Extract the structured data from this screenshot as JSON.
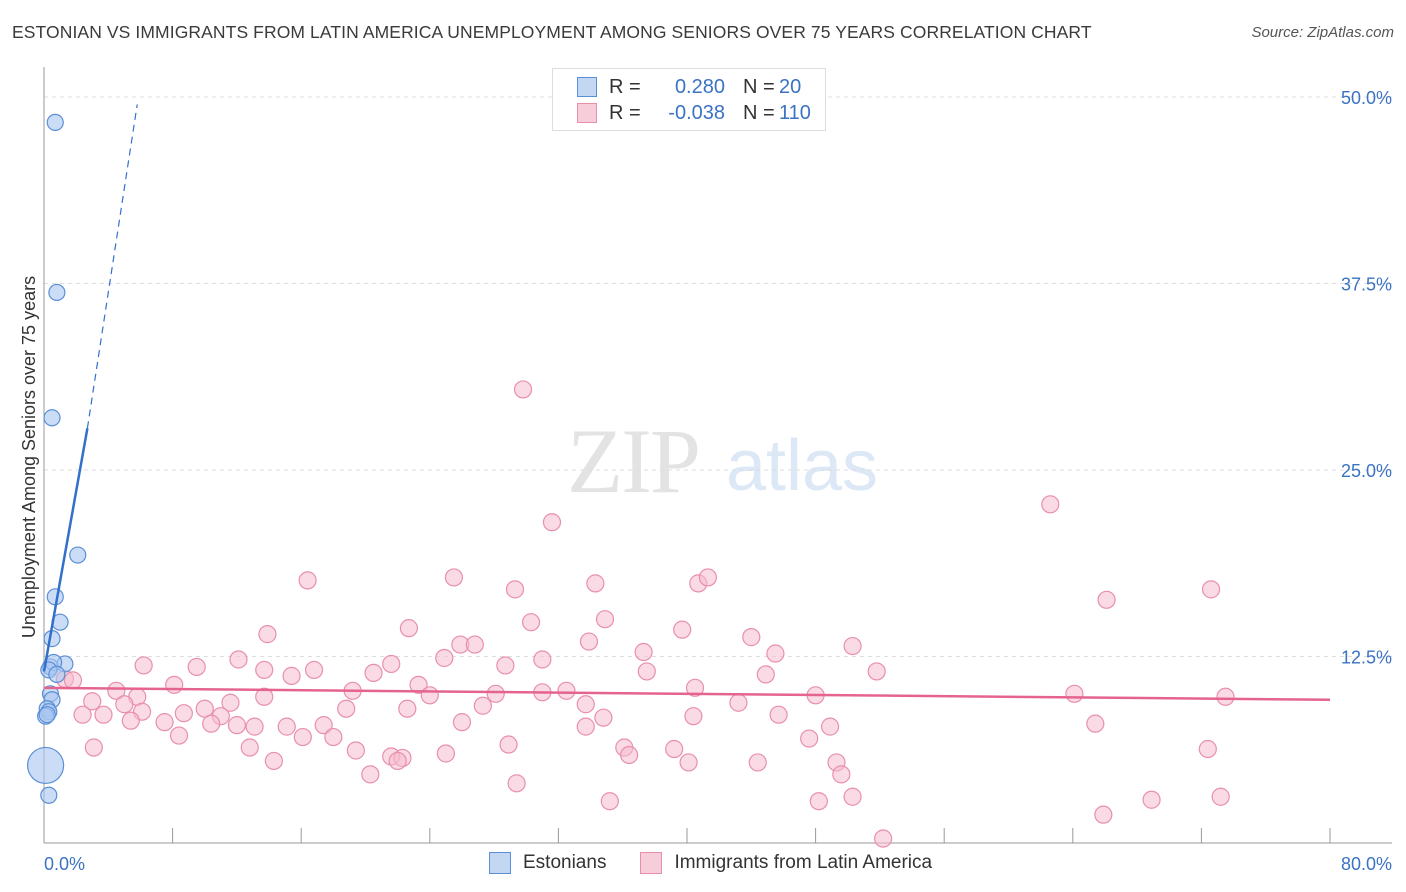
{
  "title": "ESTONIAN VS IMMIGRANTS FROM LATIN AMERICA UNEMPLOYMENT AMONG SENIORS OVER 75 YEARS CORRELATION CHART",
  "source": "Source: ZipAtlas.com",
  "watermark": {
    "zip": "ZIP",
    "atlas": "atlas"
  },
  "legend_top": [
    {
      "r_label": "R =",
      "r_value": "0.280",
      "n_label": "N =",
      "n_value": "20"
    },
    {
      "r_label": "R =",
      "r_value": "-0.038",
      "n_label": "N =",
      "n_value": "110"
    }
  ],
  "legend_bottom": [
    "Estonians",
    "Immigrants from Latin America"
  ],
  "colors": {
    "blue_fill": "#a8c6f0",
    "blue_stroke": "#5a8fd6",
    "blue_line": "#3370cc",
    "pink_fill": "#f6bccd",
    "pink_stroke": "#e890ab",
    "pink_line": "#e5648f",
    "axis_text": "#3b73c4",
    "grid": "#dddddd"
  },
  "chart_data": {
    "type": "scatter",
    "title": "ESTONIAN VS IMMIGRANTS FROM LATIN AMERICA UNEMPLOYMENT AMONG SENIORS OVER 75 YEARS CORRELATION CHART",
    "xlabel": "",
    "ylabel": "Unemployment Among Seniors over 75 years",
    "xlim": [
      0,
      80
    ],
    "ylim": [
      0,
      50
    ],
    "x_tick_labels": [
      "0.0%",
      "80.0%"
    ],
    "y_ticks": [
      12.5,
      25.0,
      37.5,
      50.0
    ],
    "y_tick_labels": [
      "12.5%",
      "25.0%",
      "37.5%",
      "50.0%"
    ],
    "series": [
      {
        "name": "Estonians",
        "r": 0.28,
        "n": 20,
        "points": [
          [
            0.7,
            48.3
          ],
          [
            0.8,
            36.9
          ],
          [
            0.5,
            28.5
          ],
          [
            2.1,
            19.3
          ],
          [
            0.7,
            16.5
          ],
          [
            1.0,
            14.8
          ],
          [
            0.5,
            13.7
          ],
          [
            0.4,
            11.8
          ],
          [
            1.3,
            12.0
          ],
          [
            0.6,
            12.1
          ],
          [
            0.3,
            11.6
          ],
          [
            0.8,
            11.3
          ],
          [
            0.4,
            10.0
          ],
          [
            0.5,
            9.6
          ],
          [
            0.2,
            9.0
          ],
          [
            0.3,
            8.8
          ],
          [
            0.1,
            8.5
          ],
          [
            0.2,
            8.6
          ],
          [
            0.3,
            3.2
          ],
          [
            0.1,
            5.2,
            "large"
          ]
        ],
        "trend": {
          "x0": 0.0,
          "y0": 11.5,
          "x1": 2.7,
          "y1": 27.8,
          "dash_x1": 5.8,
          "dash_y1": 49.5
        }
      },
      {
        "name": "Immigrants from Latin America",
        "r": -0.038,
        "n": 110,
        "points": [
          [
            29.8,
            30.4
          ],
          [
            31.6,
            21.5
          ],
          [
            62.6,
            22.7
          ],
          [
            16.4,
            17.6
          ],
          [
            25.5,
            17.8
          ],
          [
            29.3,
            17.0
          ],
          [
            34.3,
            17.4
          ],
          [
            40.7,
            17.4
          ],
          [
            41.3,
            17.8
          ],
          [
            72.6,
            17.0
          ],
          [
            66.1,
            16.3
          ],
          [
            30.3,
            14.8
          ],
          [
            34.9,
            15.0
          ],
          [
            22.7,
            14.4
          ],
          [
            39.7,
            14.3
          ],
          [
            13.9,
            14.0
          ],
          [
            25.9,
            13.3
          ],
          [
            26.8,
            13.3
          ],
          [
            33.9,
            13.5
          ],
          [
            44.0,
            13.8
          ],
          [
            50.3,
            13.2
          ],
          [
            37.3,
            12.8
          ],
          [
            31.0,
            12.3
          ],
          [
            45.5,
            12.7
          ],
          [
            12.1,
            12.3
          ],
          [
            24.9,
            12.4
          ],
          [
            6.2,
            11.9
          ],
          [
            9.5,
            11.8
          ],
          [
            13.7,
            11.6
          ],
          [
            16.8,
            11.6
          ],
          [
            20.5,
            11.4
          ],
          [
            21.6,
            12.0
          ],
          [
            28.7,
            11.9
          ],
          [
            37.5,
            11.5
          ],
          [
            44.9,
            11.3
          ],
          [
            51.8,
            11.5
          ],
          [
            15.4,
            11.2
          ],
          [
            1.3,
            11.0
          ],
          [
            1.8,
            10.9
          ],
          [
            8.1,
            10.6
          ],
          [
            4.5,
            10.2
          ],
          [
            23.3,
            10.6
          ],
          [
            40.5,
            10.4
          ],
          [
            19.2,
            10.2
          ],
          [
            31.0,
            10.1
          ],
          [
            32.5,
            10.2
          ],
          [
            28.1,
            10.0
          ],
          [
            5.8,
            9.8
          ],
          [
            13.7,
            9.8
          ],
          [
            24.0,
            9.9
          ],
          [
            48.0,
            9.9
          ],
          [
            64.1,
            10.0
          ],
          [
            73.5,
            9.8
          ],
          [
            3.0,
            9.5
          ],
          [
            5.0,
            9.3
          ],
          [
            11.6,
            9.4
          ],
          [
            18.8,
            9.0
          ],
          [
            22.6,
            9.0
          ],
          [
            33.7,
            9.3
          ],
          [
            43.2,
            9.4
          ],
          [
            27.3,
            9.2
          ],
          [
            6.1,
            8.8
          ],
          [
            10.0,
            9.0
          ],
          [
            2.4,
            8.6
          ],
          [
            3.7,
            8.6
          ],
          [
            8.7,
            8.7
          ],
          [
            11.0,
            8.5
          ],
          [
            40.4,
            8.5
          ],
          [
            45.7,
            8.6
          ],
          [
            34.8,
            8.4
          ],
          [
            5.4,
            8.2
          ],
          [
            7.5,
            8.1
          ],
          [
            10.4,
            8.0
          ],
          [
            12.0,
            7.9
          ],
          [
            13.1,
            7.8
          ],
          [
            15.1,
            7.8
          ],
          [
            17.4,
            7.9
          ],
          [
            26.0,
            8.1
          ],
          [
            33.7,
            7.8
          ],
          [
            48.9,
            7.8
          ],
          [
            65.4,
            8.0
          ],
          [
            8.4,
            7.2
          ],
          [
            16.1,
            7.1
          ],
          [
            18.0,
            7.1
          ],
          [
            47.6,
            7.0
          ],
          [
            28.9,
            6.6
          ],
          [
            12.8,
            6.4
          ],
          [
            3.1,
            6.4
          ],
          [
            36.1,
            6.4
          ],
          [
            39.2,
            6.3
          ],
          [
            19.4,
            6.2
          ],
          [
            25.0,
            6.0
          ],
          [
            21.6,
            5.8
          ],
          [
            22.3,
            5.7
          ],
          [
            36.4,
            5.9
          ],
          [
            14.3,
            5.5
          ],
          [
            40.1,
            5.4
          ],
          [
            44.4,
            5.4
          ],
          [
            49.3,
            5.4
          ],
          [
            22.0,
            5.5
          ],
          [
            72.4,
            6.3
          ],
          [
            20.3,
            4.6
          ],
          [
            49.6,
            4.6
          ],
          [
            29.4,
            4.0
          ],
          [
            35.2,
            2.8
          ],
          [
            48.2,
            2.8
          ],
          [
            50.3,
            3.1
          ],
          [
            68.9,
            2.9
          ],
          [
            73.2,
            3.1
          ],
          [
            65.9,
            1.9
          ],
          [
            52.2,
            0.3
          ]
        ],
        "trend": {
          "x0": 0.0,
          "y0": 10.4,
          "x1": 80.0,
          "y1": 9.6
        }
      }
    ]
  }
}
